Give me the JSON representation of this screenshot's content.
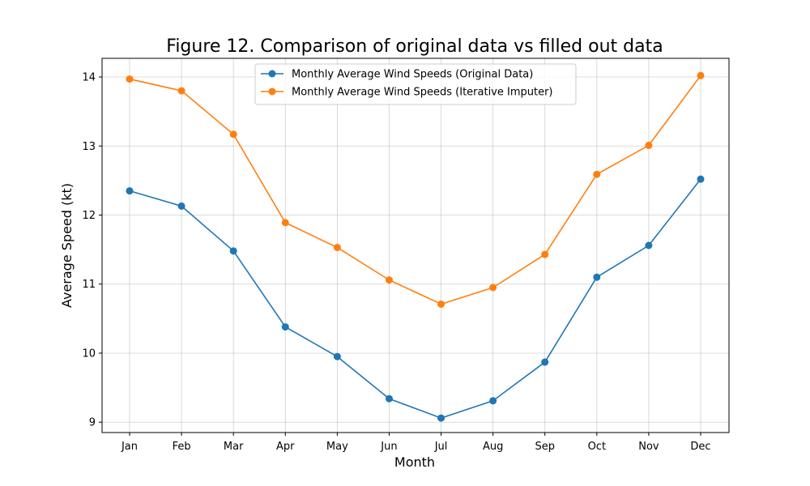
{
  "chart_data": {
    "type": "line",
    "title": "Figure 12. Comparison of original data vs filled out data",
    "xlabel": "Month",
    "ylabel": "Average Speed (kt)",
    "categories": [
      "Jan",
      "Feb",
      "Mar",
      "Apr",
      "May",
      "Jun",
      "Jul",
      "Aug",
      "Sep",
      "Oct",
      "Nov",
      "Dec"
    ],
    "ylim": [
      8.85,
      14.27
    ],
    "yticks": [
      9,
      10,
      11,
      12,
      13,
      14
    ],
    "grid": true,
    "legend_position": "top-center",
    "series": [
      {
        "name": "Monthly Average Wind Speeds (Original Data)",
        "color": "#1f77b4",
        "values": [
          12.35,
          12.13,
          11.48,
          10.38,
          9.95,
          9.34,
          9.06,
          9.31,
          9.87,
          11.1,
          11.56,
          12.52
        ]
      },
      {
        "name": "Monthly Average Wind Speeds (Iterative Imputer)",
        "color": "#ff7f0e",
        "values": [
          13.97,
          13.8,
          13.17,
          11.89,
          11.53,
          11.06,
          10.71,
          10.95,
          11.43,
          12.59,
          13.01,
          14.02
        ]
      }
    ]
  }
}
